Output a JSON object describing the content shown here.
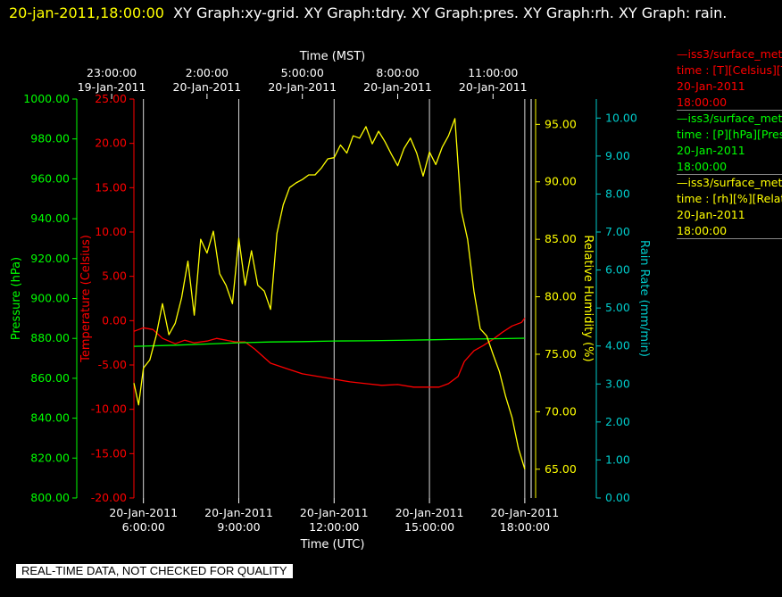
{
  "header": {
    "datetime": "20-jan-2011,18:00:00",
    "graphs": "XY Graph:xy-grid.  XY Graph:tdry.  XY Graph:pres.  XY Graph:rh.  XY Graph: rain."
  },
  "legend": [
    {
      "line1": "—iss3/surface_met",
      "line2": "time : [T][Celsius][Tem",
      "line3": "20-Jan-2011",
      "line4": "18:00:00",
      "color": "#ff0000"
    },
    {
      "line1": "—iss3/surface_met",
      "line2": "time : [P][hPa][Pressu",
      "line3": "20-Jan-2011",
      "line4": "18:00:00",
      "color": "#00ff00"
    },
    {
      "line1": "—iss3/surface_met",
      "line2": "time : [rh][%][Relative",
      "line3": "20-Jan-2011",
      "line4": "18:00:00",
      "color": "#ffff00"
    }
  ],
  "footer": {
    "quality_note": "REAL-TIME DATA, NOT CHECKED FOR QUALITY"
  },
  "chart_data": {
    "type": "line",
    "title": "",
    "grid": true,
    "x_top": {
      "label": "Time (MST)",
      "ticks": [
        {
          "t": -1,
          "time": "23:00:00",
          "date": "19-Jan-2011"
        },
        {
          "t": 2,
          "time": "2:00:00",
          "date": "20-Jan-2011"
        },
        {
          "t": 5,
          "time": "5:00:00",
          "date": "20-Jan-2011"
        },
        {
          "t": 8,
          "time": "8:00:00",
          "date": "20-Jan-2011"
        },
        {
          "t": 11,
          "time": "11:00:00",
          "date": "20-Jan-2011"
        }
      ]
    },
    "x_bottom": {
      "label": "Time (UTC)",
      "xlim": [
        -0.3,
        12.2
      ],
      "ticks": [
        {
          "t": 0,
          "date": "20-Jan-2011",
          "time": "6:00:00"
        },
        {
          "t": 3,
          "date": "20-Jan-2011",
          "time": "9:00:00"
        },
        {
          "t": 6,
          "date": "20-Jan-2011",
          "time": "12:00:00"
        },
        {
          "t": 9,
          "date": "20-Jan-2011",
          "time": "15:00:00"
        },
        {
          "t": 12,
          "date": "20-Jan-2011",
          "time": "18:00:00"
        }
      ]
    },
    "y_axes": [
      {
        "id": "pres",
        "label": "Pressure (hPa)",
        "color": "#00ff00",
        "ylim": [
          800,
          1000
        ],
        "ticks": [
          "800.00",
          "820.00",
          "840.00",
          "860.00",
          "880.00",
          "900.00",
          "920.00",
          "940.00",
          "960.00",
          "980.00",
          "1000.00"
        ]
      },
      {
        "id": "temp",
        "label": "Temperature (Celsius)",
        "color": "#ff0000",
        "ylim": [
          -20,
          25
        ],
        "ticks": [
          "-20.00",
          "-15.00",
          "-10.00",
          "-5.00",
          "0.00",
          "5.00",
          "10.00",
          "15.00",
          "20.00",
          "25.00"
        ]
      },
      {
        "id": "rh",
        "label": "Relative Humidity (%)",
        "color": "#ffff00",
        "ylim": [
          62.5,
          97.2
        ],
        "ticks": [
          "65.00",
          "70.00",
          "75.00",
          "80.00",
          "85.00",
          "90.00",
          "95.00"
        ]
      },
      {
        "id": "rain",
        "label": "Rain Rate (mm/min)",
        "color": "#00cccc",
        "ylim": [
          0,
          10.5
        ],
        "ticks": [
          "0.00",
          "1.00",
          "2.00",
          "3.00",
          "4.00",
          "5.00",
          "6.00",
          "7.00",
          "8.00",
          "9.00",
          "10.00"
        ]
      }
    ],
    "series": [
      {
        "axis": "temp",
        "color": "#ff0000",
        "x": [
          -0.3,
          0,
          0.3,
          0.6,
          1,
          1.3,
          1.6,
          2,
          2.3,
          2.6,
          2.9,
          3.2,
          3.5,
          4,
          4.5,
          5,
          5.5,
          6,
          6.5,
          7,
          7.5,
          8,
          8.5,
          9,
          9.3,
          9.6,
          9.9,
          10.1,
          10.4,
          10.7,
          11,
          11.3,
          11.6,
          11.9,
          12
        ],
        "y": [
          -1.2,
          -0.8,
          -1,
          -2,
          -2.6,
          -2.2,
          -2.5,
          -2.3,
          -2.0,
          -2.2,
          -2.4,
          -2.4,
          -3.2,
          -4.8,
          -5.4,
          -6.0,
          -6.3,
          -6.6,
          -6.9,
          -7.1,
          -7.3,
          -7.2,
          -7.5,
          -7.5,
          -7.5,
          -7.1,
          -6.3,
          -4.6,
          -3.4,
          -2.8,
          -2.1,
          -1.3,
          -0.6,
          -0.2,
          0.3
        ]
      },
      {
        "axis": "pres",
        "color": "#00ff00",
        "x": [
          -0.3,
          0,
          1,
          2,
          3,
          4,
          5,
          6,
          7,
          8,
          9,
          10,
          11,
          12
        ],
        "y": [
          876.0,
          876.1,
          876.6,
          877.2,
          877.8,
          878.2,
          878.4,
          878.7,
          878.8,
          879.0,
          879.3,
          879.6,
          879.8,
          880.1
        ]
      },
      {
        "axis": "rh",
        "color": "#ffff00",
        "x": [
          -0.3,
          -0.15,
          0,
          0.2,
          0.4,
          0.6,
          0.8,
          1,
          1.2,
          1.4,
          1.6,
          1.8,
          2,
          2.2,
          2.4,
          2.6,
          2.8,
          3,
          3.2,
          3.4,
          3.6,
          3.8,
          4,
          4.2,
          4.4,
          4.6,
          4.8,
          5,
          5.2,
          5.4,
          5.6,
          5.8,
          6,
          6.2,
          6.4,
          6.6,
          6.8,
          7,
          7.2,
          7.4,
          7.6,
          7.8,
          8,
          8.2,
          8.4,
          8.6,
          8.8,
          9,
          9.2,
          9.4,
          9.6,
          9.8,
          10,
          10.2,
          10.4,
          10.6,
          10.8,
          11,
          11.2,
          11.4,
          11.6,
          11.8,
          12
        ],
        "y": [
          72.5,
          70.6,
          73.8,
          74.5,
          76.6,
          79.4,
          76.7,
          77.7,
          79.9,
          83.1,
          78.4,
          85.0,
          83.8,
          85.7,
          82.0,
          81.0,
          79.4,
          85.1,
          81.0,
          84.0,
          81.0,
          80.5,
          78.9,
          85.5,
          88.0,
          89.5,
          89.9,
          90.2,
          90.6,
          90.6,
          91.2,
          92.0,
          92.1,
          93.2,
          92.5,
          94.0,
          93.8,
          94.8,
          93.3,
          94.4,
          93.5,
          92.4,
          91.4,
          92.9,
          93.8,
          92.5,
          90.5,
          92.6,
          91.5,
          93.0,
          94.0,
          95.5,
          87.5,
          85.0,
          80.5,
          77.2,
          76.6,
          75.0,
          73.5,
          71.3,
          69.5,
          66.8,
          65.0
        ]
      }
    ]
  }
}
